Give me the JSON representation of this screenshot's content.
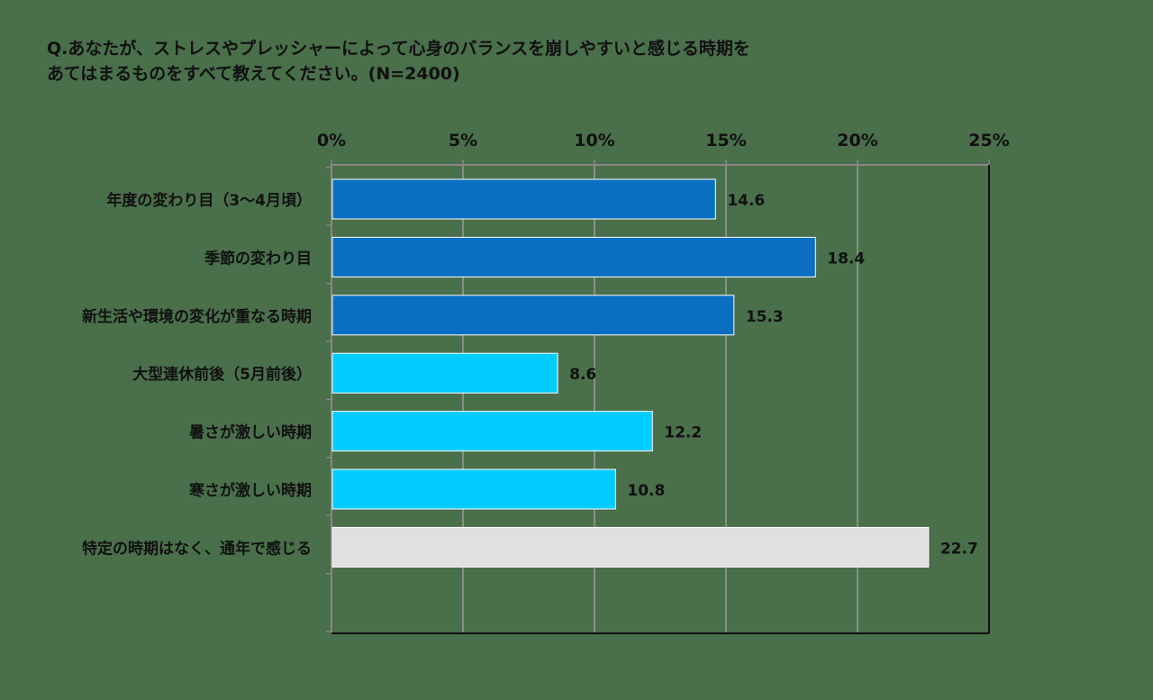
{
  "chart_data": {
    "type": "bar",
    "orientation": "horizontal",
    "title_lines": [
      "Q.あなたが、ストレスやプレッシャーによって心身のバランスを崩しやすいと感じる時期を",
      "あてはまるものをすべて教えてください。(N=2400)"
    ],
    "categories": [
      "年度の変わり目（3〜4月頃）",
      "季節の変わり目",
      "新生活や環境の変化が重なる時期",
      "大型連休前後（5月前後）",
      "暑さが激しい時期",
      "寒さが激しい時期",
      "特定の時期はなく、通年で感じる"
    ],
    "values": [
      14.6,
      18.4,
      15.3,
      8.6,
      12.2,
      10.8,
      22.7
    ],
    "value_labels": [
      "14.6",
      "18.4",
      "15.3",
      "8.6",
      "12.2",
      "10.8",
      "22.7"
    ],
    "bar_colors": [
      "#0a6fc2",
      "#0a6fc2",
      "#0a6fc2",
      "#00ccff",
      "#00ccff",
      "#00ccff",
      "#e0e0e0"
    ],
    "xlim": [
      0,
      25
    ],
    "xticks": [
      0,
      5,
      10,
      15,
      20,
      25
    ],
    "xtick_labels": [
      "0%",
      "5%",
      "10%",
      "15%",
      "20%",
      "25%"
    ],
    "x_axis_position": "top",
    "grid": true,
    "gridline_color": "#999999"
  }
}
